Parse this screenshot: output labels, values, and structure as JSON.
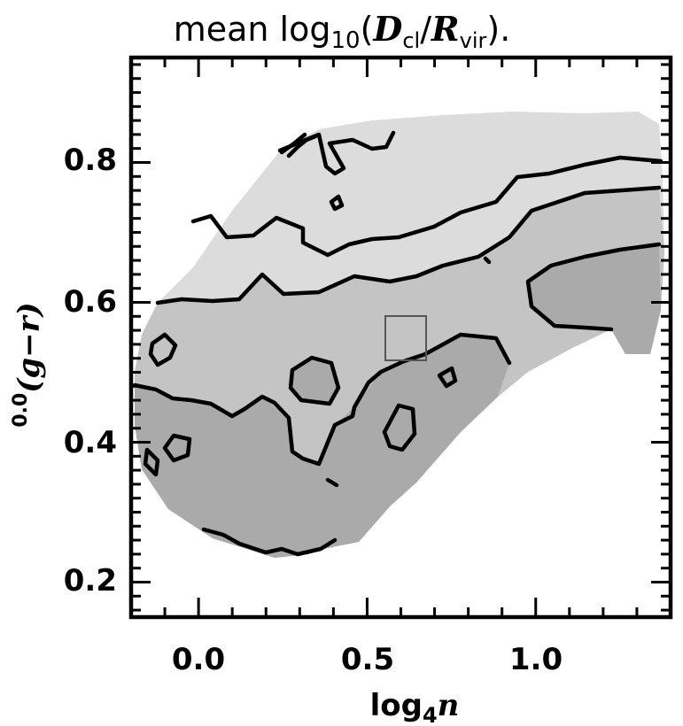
{
  "chart_data": {
    "type": "heatmap",
    "title": "mean log10(Dcl/Rvir).",
    "title_parts": {
      "prefix": "mean  log",
      "sub": "10",
      "open": "(",
      "var1": "D",
      "var1_sub": "cl",
      "slash": "/",
      "var2": "R",
      "var2_sub": "vir",
      "close": ").",
      "prefix_lead": ""
    },
    "xlabel": "log4n",
    "xlabel_parts": {
      "base": "log",
      "sub": "4",
      "var": "n"
    },
    "ylabel": "0.0(g−r)",
    "ylabel_parts": {
      "sup": "0.0",
      "expr": "(g−r)"
    },
    "xlim": [
      -0.2,
      1.4
    ],
    "ylim": [
      0.15,
      0.95
    ],
    "x_ticks": [
      0.0,
      0.5,
      1.0
    ],
    "x_tick_labels": [
      "0.0",
      "0.5",
      "1.0"
    ],
    "y_ticks": [
      0.2,
      0.4,
      0.6,
      0.8
    ],
    "y_tick_labels": [
      "0.2",
      "0.4",
      "0.6",
      "0.8"
    ],
    "grid": false,
    "colors": {
      "light": "#dcdcdc",
      "medium": "#c4c4c4",
      "dark": "#aaaaaa",
      "line": "#000000"
    }
  }
}
